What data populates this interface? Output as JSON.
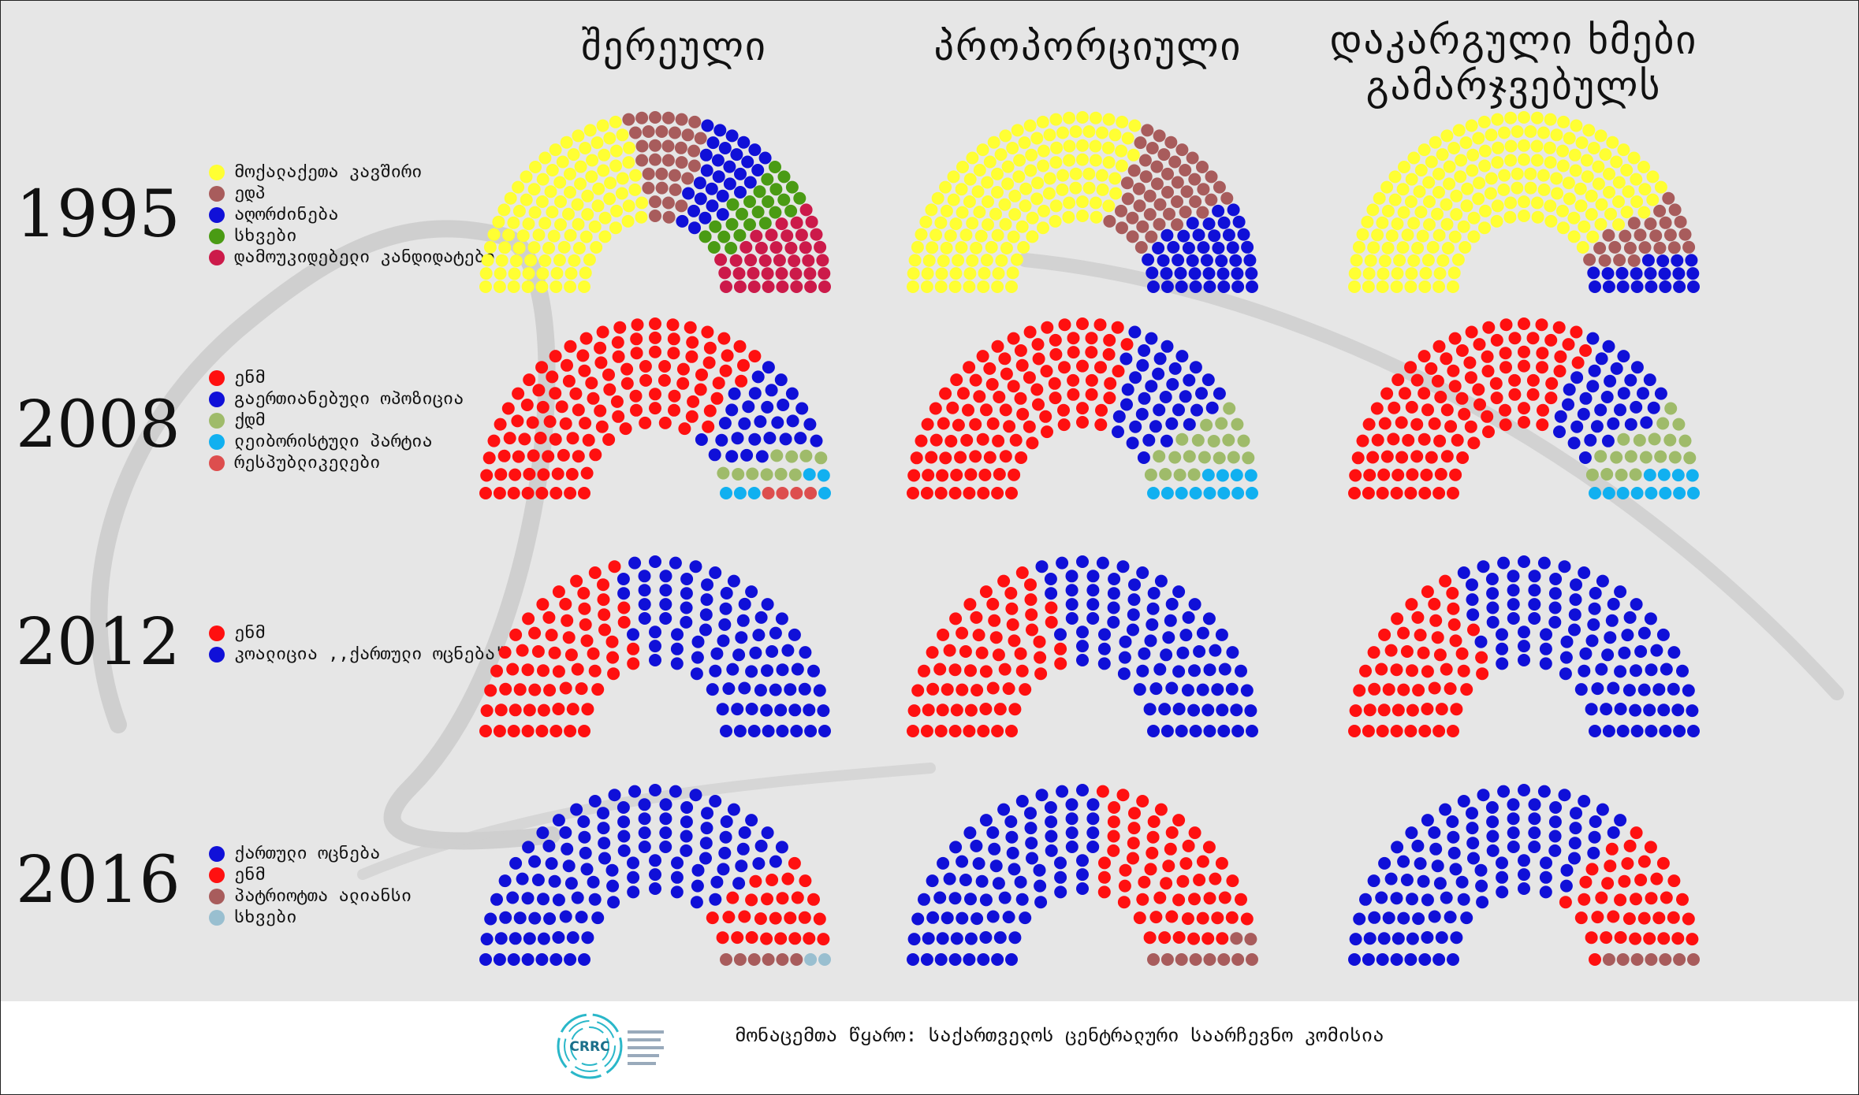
{
  "columns": [
    "შერეული",
    "პროპორციული",
    "დაკარგული ხმები\nგამარჯვებულს"
  ],
  "years": [
    "1995",
    "2008",
    "2012",
    "2016"
  ],
  "legends": [
    [
      {
        "label": "მოქალაქეთა კავშირი",
        "color": "#ffff33"
      },
      {
        "label": "ედპ",
        "color": "#a85c5c"
      },
      {
        "label": "აღორძინება",
        "color": "#1010d8"
      },
      {
        "label": "სხვები",
        "color": "#4a9b14"
      },
      {
        "label": "დამოუკიდებელი კანდიდატები",
        "color": "#cc1a4a"
      }
    ],
    [
      {
        "label": "ენმ",
        "color": "#ff1010"
      },
      {
        "label": "გაერთიანებული ოპოზიცია",
        "color": "#1010d8"
      },
      {
        "label": "ქდმ",
        "color": "#9fbb6a"
      },
      {
        "label": "ლეიბორისტული პარტია",
        "color": "#11b0f0"
      },
      {
        "label": "რესპუბლიკელები",
        "color": "#dd4e4e"
      }
    ],
    [
      {
        "label": "ენმ",
        "color": "#ff1010"
      },
      {
        "label": "კოალიცია ,,ქართული ოცნება\"",
        "color": "#1010d8"
      }
    ],
    [
      {
        "label": "ქართული ოცნება",
        "color": "#1010d8"
      },
      {
        "label": "ენმ",
        "color": "#ff1010"
      },
      {
        "label": "პატრიოტთა ალიანსი",
        "color": "#a85c5c"
      },
      {
        "label": "სხვები",
        "color": "#99bfd0"
      }
    ]
  ],
  "chart_data": {
    "type": "parliament",
    "rows": [
      "1995",
      "2008",
      "2012",
      "2016"
    ],
    "columns": [
      "შერეული",
      "პროპორციული",
      "დაკარგული ხმები გამარჯვებულს"
    ],
    "charts": [
      [
        {
          "seats": [
            {
              "party": "მოქალაქეთა კავშირი",
              "value": 107
            },
            {
              "party": "ედპ",
              "value": 34
            },
            {
              "party": "აღორძინება",
              "value": 31
            },
            {
              "party": "სხვები",
              "value": 24
            },
            {
              "party": "დამოუკიდებელი კანდიდატები",
              "value": 39
            }
          ]
        },
        {
          "seats": [
            {
              "party": "მოქალაქეთა კავშირი",
              "value": 144
            },
            {
              "party": "ედპ",
              "value": 48
            },
            {
              "party": "აღორძინება",
              "value": 43
            }
          ]
        },
        {
          "seats": [
            {
              "party": "მოქალაქეთა კავშირი",
              "value": 191
            },
            {
              "party": "ედპ",
              "value": 24
            },
            {
              "party": "აღორძინება",
              "value": 20
            }
          ]
        }
      ],
      [
        {
          "seats": [
            {
              "party": "ენმ",
              "value": 119
            },
            {
              "party": "გაერთიანებული ოპოზიცია",
              "value": 30
            },
            {
              "party": "ქდმ",
              "value": 10
            },
            {
              "party": "ლეიბორისტული პარტია",
              "value": 6
            },
            {
              "party": "რესპუბლიკელები",
              "value": 4
            }
          ]
        },
        {
          "seats": [
            {
              "party": "ენმ",
              "value": 104
            },
            {
              "party": "გაერთიანებული ოპოზიცია",
              "value": 38
            },
            {
              "party": "ქდმ",
              "value": 20
            },
            {
              "party": "ლეიბორისტული პარტია",
              "value": 12
            }
          ]
        },
        {
          "seats": [
            {
              "party": "ენმ",
              "value": 107
            },
            {
              "party": "გაერთიანებული ოპოზიცია",
              "value": 35
            },
            {
              "party": "ქდმ",
              "value": 19
            },
            {
              "party": "ლეიბორისტული პარტია",
              "value": 12
            }
          ]
        }
      ],
      [
        {
          "seats": [
            {
              "party": "ენმ",
              "value": 65
            },
            {
              "party": "კოალიცია ,,ქართული ოცნება\"",
              "value": 85
            }
          ]
        },
        {
          "seats": [
            {
              "party": "ენმ",
              "value": 64
            },
            {
              "party": "კოალიცია ,,ქართული ოცნება\"",
              "value": 86
            }
          ]
        },
        {
          "seats": [
            {
              "party": "ენმ",
              "value": 55
            },
            {
              "party": "კოალიცია ,,ქართული ოცნება\"",
              "value": 95
            }
          ]
        }
      ],
      [
        {
          "seats": [
            {
              "party": "ქართული ოცნება",
              "value": 115
            },
            {
              "party": "ენმ",
              "value": 27
            },
            {
              "party": "პატრიოტთა ალიანსი",
              "value": 6
            },
            {
              "party": "სხვები",
              "value": 2
            }
          ]
        },
        {
          "seats": [
            {
              "party": "ქართული ოცნება",
              "value": 81
            },
            {
              "party": "ენმ",
              "value": 59
            },
            {
              "party": "პატრიოტთა ალიანსი",
              "value": 10
            }
          ]
        },
        {
          "seats": [
            {
              "party": "ქართული ოცნება",
              "value": 103
            },
            {
              "party": "ენმ",
              "value": 40
            },
            {
              "party": "პატრიოტთა ალიანსი",
              "value": 7
            }
          ]
        }
      ]
    ]
  },
  "footer": {
    "source": "მონაცემთა წყარო: საქართველოს ცენტრალური საარჩევნო კომისია",
    "logo_text": "CRRC"
  }
}
